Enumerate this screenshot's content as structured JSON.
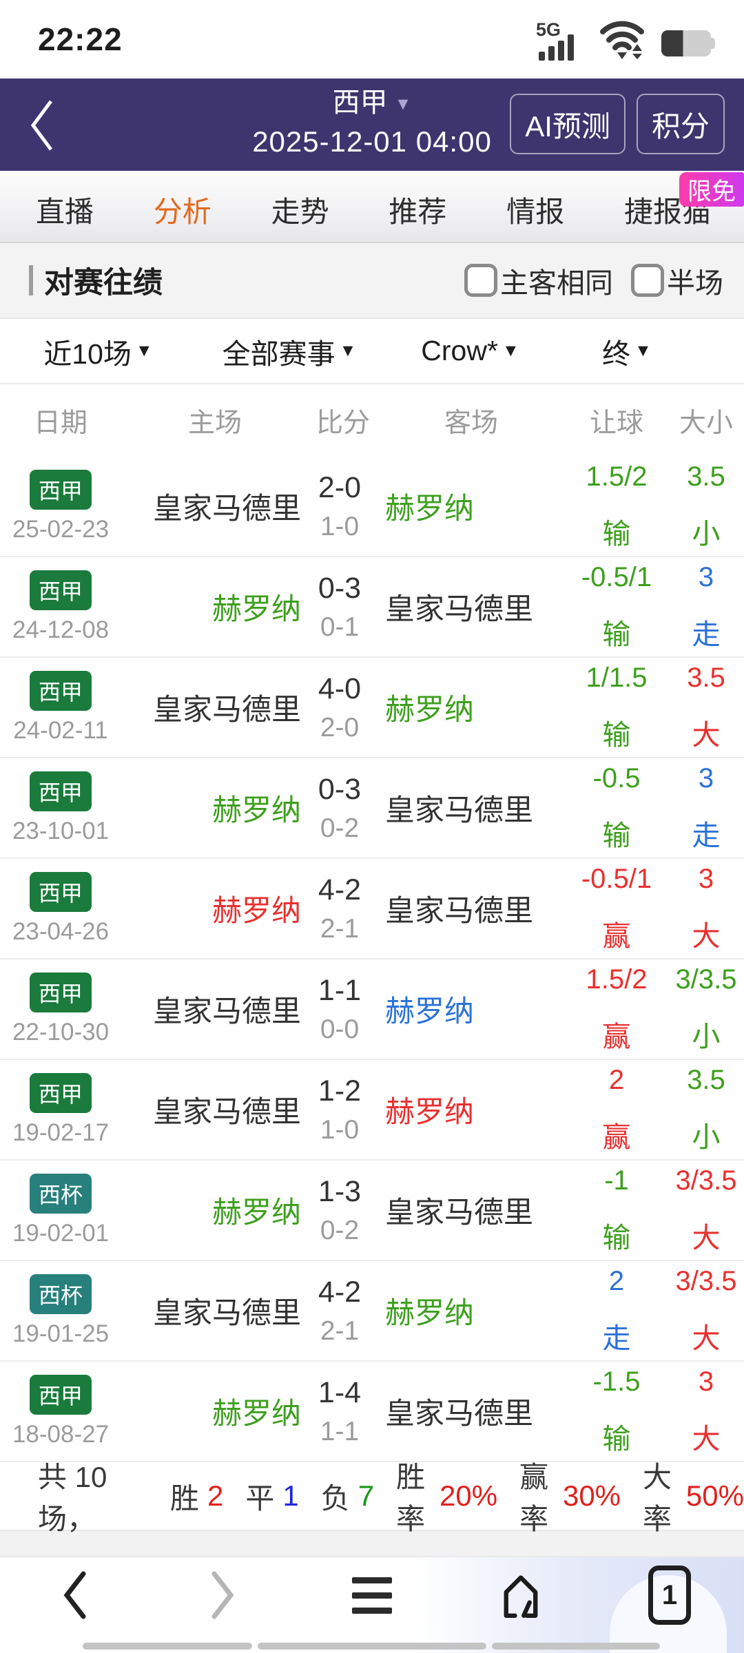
{
  "colors": {
    "header_bg": "#3e356f",
    "active_tab_orange": "#e2691f",
    "table_green": "#3d9f1d",
    "table_red": "#e8312f",
    "table_blue": "#2b72d7",
    "badge_liga_green": "#1a7b3c",
    "badge_cup_teal": "#27807c",
    "promo_gradient": [
      "#fa3cab",
      "#cf39ee"
    ],
    "summary_red": "#e1201c",
    "summary_blue": "#2424e0",
    "summary_green": "#189618"
  },
  "status_bar": {
    "time": "22:22",
    "network_label": "5G"
  },
  "header": {
    "league": "西甲",
    "kickoff": "2025-12-01 04:00",
    "buttons": [
      {
        "label": "AI预测"
      },
      {
        "label": "积分"
      }
    ]
  },
  "promo_badge": "限免",
  "tabs": [
    {
      "label": "直播",
      "active": false
    },
    {
      "label": "分析",
      "active": true
    },
    {
      "label": "走势",
      "active": false
    },
    {
      "label": "推荐",
      "active": false
    },
    {
      "label": "情报",
      "active": false
    },
    {
      "label": "捷报猫",
      "active": false
    }
  ],
  "section": {
    "title": "对赛往绩",
    "checkboxes": [
      {
        "label": "主客相同",
        "checked": false
      },
      {
        "label": "半场",
        "checked": false
      }
    ]
  },
  "filters": [
    {
      "label": "近10场"
    },
    {
      "label": "全部赛事"
    },
    {
      "label": "Crow*"
    },
    {
      "label": "终"
    }
  ],
  "table": {
    "headers": [
      "日期",
      "主场",
      "比分",
      "客场",
      "让球",
      "大小"
    ],
    "rows": [
      {
        "league": "西甲",
        "league_color": "liga",
        "date": "25-02-23",
        "home": "皇家马德里",
        "home_color": "dark",
        "ft": "2-0",
        "ht": "1-0",
        "away": "赫罗纳",
        "away_color": "green",
        "handicap": "1.5/2",
        "handicap_result": "输",
        "handicap_color": "green",
        "ou": "3.5",
        "ou_result": "小",
        "ou_color": "green"
      },
      {
        "league": "西甲",
        "league_color": "liga",
        "date": "24-12-08",
        "home": "赫罗纳",
        "home_color": "green",
        "ft": "0-3",
        "ht": "0-1",
        "away": "皇家马德里",
        "away_color": "dark",
        "handicap": "-0.5/1",
        "handicap_result": "输",
        "handicap_color": "green",
        "ou": "3",
        "ou_result": "走",
        "ou_color": "blue"
      },
      {
        "league": "西甲",
        "league_color": "liga",
        "date": "24-02-11",
        "home": "皇家马德里",
        "home_color": "dark",
        "ft": "4-0",
        "ht": "2-0",
        "away": "赫罗纳",
        "away_color": "green",
        "handicap": "1/1.5",
        "handicap_result": "输",
        "handicap_color": "green",
        "ou": "3.5",
        "ou_result": "大",
        "ou_color": "red"
      },
      {
        "league": "西甲",
        "league_color": "liga",
        "date": "23-10-01",
        "home": "赫罗纳",
        "home_color": "green",
        "ft": "0-3",
        "ht": "0-2",
        "away": "皇家马德里",
        "away_color": "dark",
        "handicap": "-0.5",
        "handicap_result": "输",
        "handicap_color": "green",
        "ou": "3",
        "ou_result": "走",
        "ou_color": "blue"
      },
      {
        "league": "西甲",
        "league_color": "liga",
        "date": "23-04-26",
        "home": "赫罗纳",
        "home_color": "red",
        "ft": "4-2",
        "ht": "2-1",
        "away": "皇家马德里",
        "away_color": "dark",
        "handicap": "-0.5/1",
        "handicap_result": "赢",
        "handicap_color": "red",
        "ou": "3",
        "ou_result": "大",
        "ou_color": "red"
      },
      {
        "league": "西甲",
        "league_color": "liga",
        "date": "22-10-30",
        "home": "皇家马德里",
        "home_color": "dark",
        "ft": "1-1",
        "ht": "0-0",
        "away": "赫罗纳",
        "away_color": "blue",
        "handicap": "1.5/2",
        "handicap_result": "赢",
        "handicap_color": "red",
        "ou": "3/3.5",
        "ou_result": "小",
        "ou_color": "green"
      },
      {
        "league": "西甲",
        "league_color": "liga",
        "date": "19-02-17",
        "home": "皇家马德里",
        "home_color": "dark",
        "ft": "1-2",
        "ht": "1-0",
        "away": "赫罗纳",
        "away_color": "red",
        "handicap": "2",
        "handicap_result": "赢",
        "handicap_color": "red",
        "ou": "3.5",
        "ou_result": "小",
        "ou_color": "green"
      },
      {
        "league": "西杯",
        "league_color": "cup",
        "date": "19-02-01",
        "home": "赫罗纳",
        "home_color": "green",
        "ft": "1-3",
        "ht": "0-2",
        "away": "皇家马德里",
        "away_color": "dark",
        "handicap": "-1",
        "handicap_result": "输",
        "handicap_color": "green",
        "ou": "3/3.5",
        "ou_result": "大",
        "ou_color": "red"
      },
      {
        "league": "西杯",
        "league_color": "cup",
        "date": "19-01-25",
        "home": "皇家马德里",
        "home_color": "dark",
        "ft": "4-2",
        "ht": "2-1",
        "away": "赫罗纳",
        "away_color": "green",
        "handicap": "2",
        "handicap_result": "走",
        "handicap_color": "blue",
        "ou": "3/3.5",
        "ou_result": "大",
        "ou_color": "red"
      },
      {
        "league": "西甲",
        "league_color": "liga",
        "date": "18-08-27",
        "home": "赫罗纳",
        "home_color": "green",
        "ft": "1-4",
        "ht": "1-1",
        "away": "皇家马德里",
        "away_color": "dark",
        "handicap": "-1.5",
        "handicap_result": "输",
        "handicap_color": "green",
        "ou": "3",
        "ou_result": "大",
        "ou_color": "red"
      }
    ]
  },
  "summary": {
    "prefix": "共 10 场，",
    "segments": [
      {
        "label": "胜",
        "value": "2",
        "color": "red"
      },
      {
        "label": "平",
        "value": "1",
        "color": "blue"
      },
      {
        "label": "负",
        "value": "7",
        "color": "green"
      },
      {
        "label": "胜率",
        "value": "20%",
        "color": "red"
      },
      {
        "label": "赢率",
        "value": "30%",
        "color": "red"
      },
      {
        "label": "大率",
        "value": "50%",
        "color": "red"
      }
    ]
  },
  "nav": {
    "tab_count": "1"
  }
}
